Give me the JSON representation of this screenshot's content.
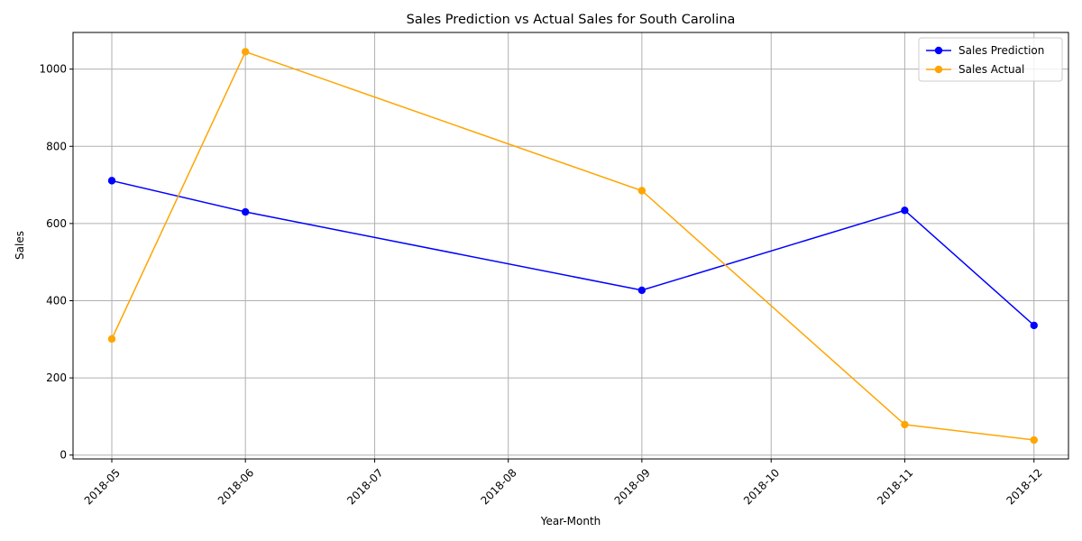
{
  "chart_data": {
    "type": "line",
    "title": "Sales Prediction vs Actual Sales for South Carolina",
    "xlabel": "Year-Month",
    "ylabel": "Sales",
    "x_ticks": [
      "2018-05",
      "2018-06",
      "2018-07",
      "2018-08",
      "2018-09",
      "2018-10",
      "2018-11",
      "2018-12"
    ],
    "y_ticks": [
      "0",
      "200",
      "400",
      "600",
      "800",
      "1000"
    ],
    "ylim": [
      -10,
      1095
    ],
    "xlim": [
      "2018-04-22",
      "2018-12-09"
    ],
    "grid": true,
    "legend_position": "top-right",
    "series": [
      {
        "name": "Sales Prediction",
        "color": "#0000ff",
        "marker": "circle",
        "points": [
          {
            "x": "2018-05-01",
            "y": 711
          },
          {
            "x": "2018-06-01",
            "y": 630
          },
          {
            "x": "2018-09-01",
            "y": 427
          },
          {
            "x": "2018-11-01",
            "y": 634
          },
          {
            "x": "2018-12-01",
            "y": 336
          }
        ]
      },
      {
        "name": "Sales Actual",
        "color": "#ffa500",
        "marker": "circle",
        "points": [
          {
            "x": "2018-05-01",
            "y": 301
          },
          {
            "x": "2018-06-01",
            "y": 1045
          },
          {
            "x": "2018-09-01",
            "y": 685
          },
          {
            "x": "2018-11-01",
            "y": 79
          },
          {
            "x": "2018-12-01",
            "y": 39
          }
        ]
      }
    ]
  }
}
